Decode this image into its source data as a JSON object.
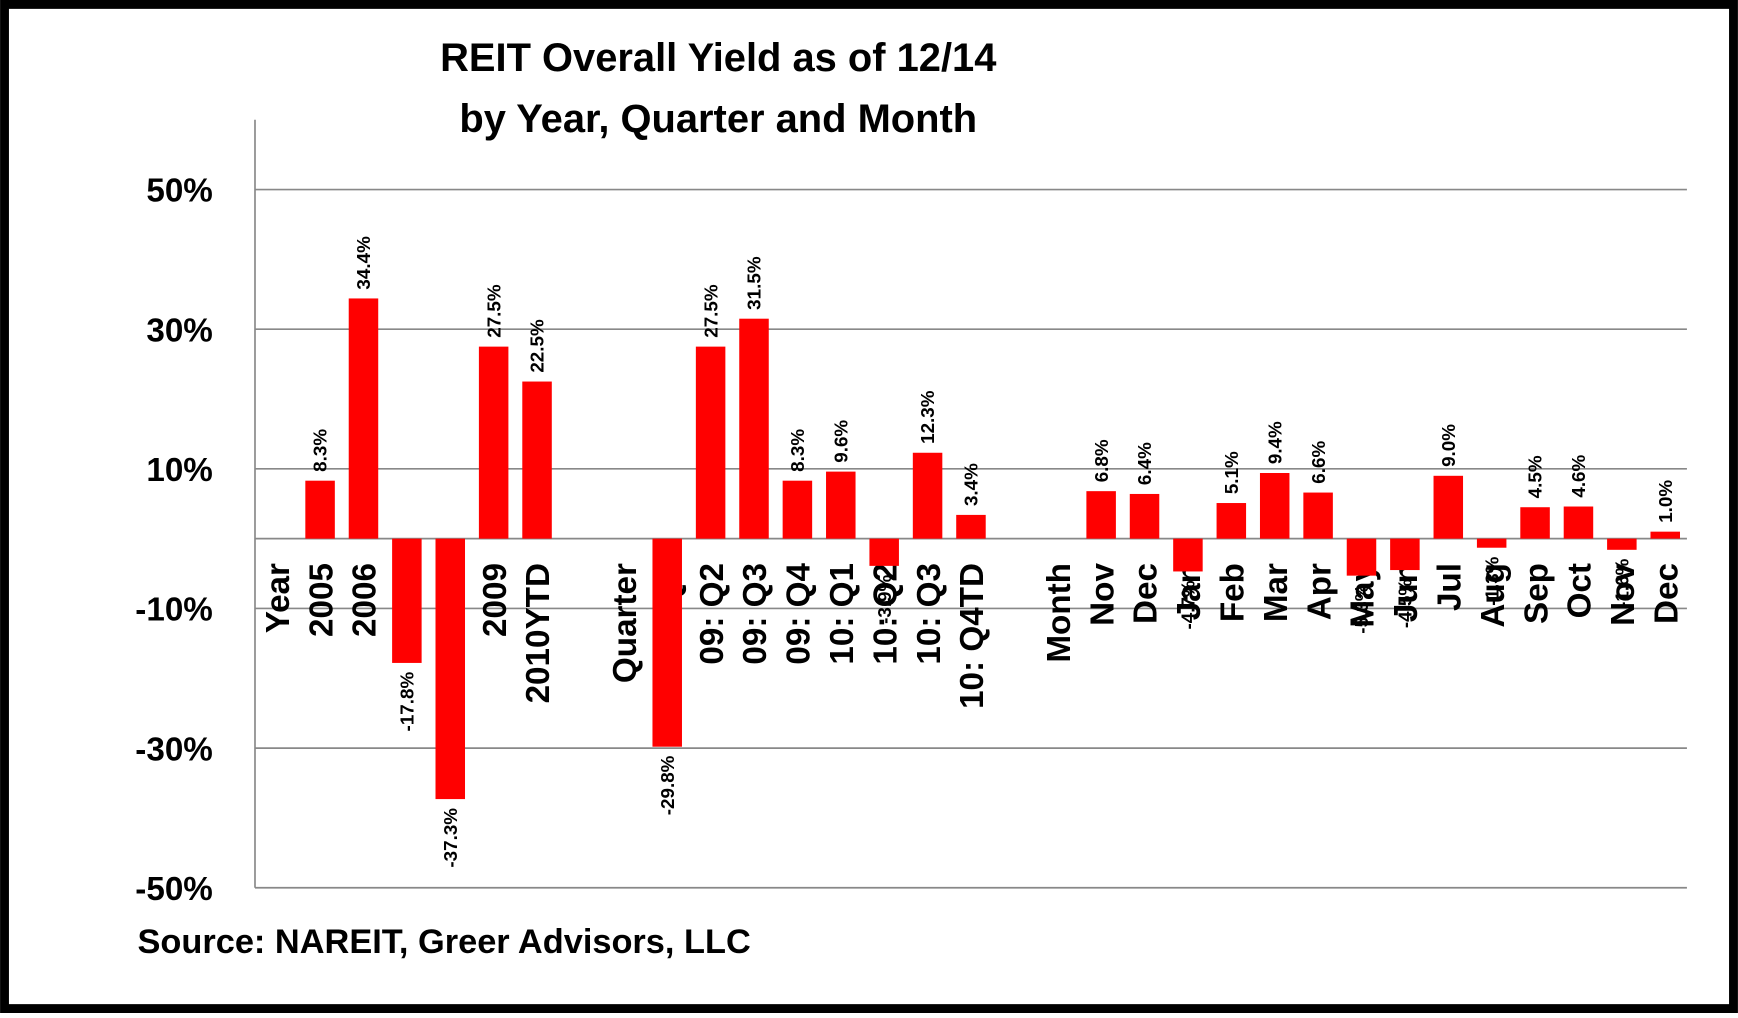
{
  "chart_data": {
    "type": "bar",
    "title": [
      "REIT Overall Yield as of 12/14",
      "by Year, Quarter and Month"
    ],
    "source": "Source: NAREIT, Greer Advisors, LLC",
    "color": "#ff0000",
    "grid": true,
    "categories": [
      "Year",
      "2005",
      "2006",
      "2007",
      "2008",
      "2009",
      "2010YTD",
      null,
      "Quarter",
      "09: Q1",
      "09: Q2",
      "09: Q3",
      "09: Q4",
      "10: Q1",
      "10: Q2",
      "10: Q3",
      "10: Q4TD",
      null,
      "Month",
      "Nov",
      "Dec",
      "Jan",
      "Feb",
      "Mar",
      "Apr",
      "May",
      "Jun",
      "Jul",
      "Aug",
      "Sep",
      "Oct",
      "Nov",
      "Dec"
    ],
    "values": [
      null,
      8.3,
      34.4,
      -17.8,
      -37.3,
      27.5,
      22.5,
      null,
      null,
      -29.8,
      27.5,
      31.5,
      8.3,
      9.6,
      -3.9,
      12.3,
      3.4,
      null,
      null,
      6.8,
      6.4,
      -4.7,
      5.1,
      9.4,
      6.6,
      -5.3,
      -4.5,
      9.0,
      -1.3,
      4.5,
      4.6,
      -1.6,
      1.0
    ],
    "value_labels": [
      null,
      "8.3%",
      "34.4%",
      "-17.8%",
      "-37.3%",
      "27.5%",
      "22.5%",
      null,
      null,
      "-29.8%",
      "27.5%",
      "31.5%",
      "8.3%",
      "9.6%",
      "-3.9%",
      "12.3%",
      "3.4%",
      null,
      null,
      "6.8%",
      "6.4%",
      "-4.7%",
      "5.1%",
      "9.4%",
      "6.6%",
      "-5.3%",
      "-4.5%",
      "9.0%",
      "-1.3%",
      "4.5%",
      "4.6%",
      "-1.6%",
      "1.0%"
    ],
    "ylim": [
      -50,
      60
    ],
    "yticks": [
      {
        "value": -50,
        "label": "-50%"
      },
      {
        "value": -30,
        "label": "-30%"
      },
      {
        "value": -10,
        "label": "-10%"
      },
      {
        "value": 10,
        "label": "10%"
      },
      {
        "value": 30,
        "label": "30%"
      },
      {
        "value": 50,
        "label": "50%"
      }
    ]
  }
}
